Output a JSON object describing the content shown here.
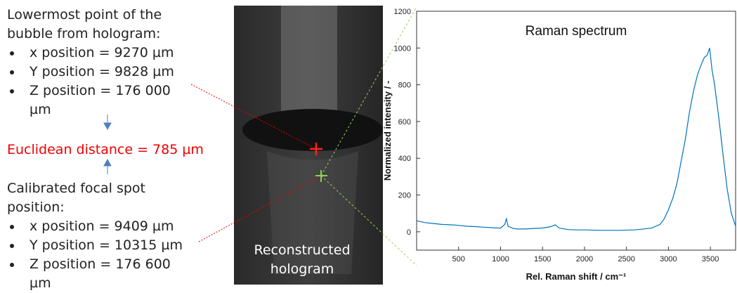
{
  "left": {
    "bubble_heading": "Lowermost point of the bubble from hologram:",
    "bubble_items": [
      "x position = 9270 µm",
      "Y position = 9828 µm",
      "Z position = 176 000 µm"
    ],
    "distance": "Euclidean distance = 785 µm",
    "focal_heading": "Calibrated focal spot position:",
    "focal_items": [
      "x position = 9409 µm",
      "Y position = 10315 µm",
      "Z position = 176 600 µm"
    ]
  },
  "hologram_label": "Reconstructed hologram",
  "chart_data": {
    "type": "line",
    "title": "Raman spectrum",
    "xlabel": "Rel. Raman shift / cm⁻¹",
    "ylabel": "Normalized intensity / -",
    "color": "#0072bd",
    "x": [
      0,
      100,
      200,
      300,
      400,
      500,
      600,
      700,
      800,
      900,
      1000,
      1050,
      1070,
      1090,
      1150,
      1200,
      1300,
      1400,
      1500,
      1600,
      1650,
      1700,
      1800,
      1900,
      2000,
      2200,
      2400,
      2600,
      2800,
      2900,
      2950,
      3000,
      3050,
      3100,
      3150,
      3200,
      3250,
      3300,
      3350,
      3400,
      3430,
      3460,
      3490,
      3520,
      3550,
      3600,
      3650,
      3700,
      3750,
      3800
    ],
    "values": [
      60,
      50,
      45,
      40,
      38,
      35,
      30,
      28,
      25,
      22,
      20,
      40,
      70,
      30,
      18,
      15,
      15,
      18,
      20,
      28,
      38,
      20,
      12,
      10,
      10,
      8,
      8,
      10,
      20,
      40,
      70,
      120,
      180,
      260,
      380,
      500,
      650,
      770,
      860,
      920,
      950,
      960,
      1000,
      880,
      800,
      620,
      420,
      230,
      100,
      30
    ],
    "xlim": [
      0,
      3800
    ],
    "ylim": [
      -100,
      1200
    ],
    "xticks": [
      500,
      1000,
      1500,
      2000,
      2500,
      3000,
      3500
    ],
    "yticks": [
      0,
      200,
      400,
      600,
      800,
      1000,
      1200
    ]
  }
}
